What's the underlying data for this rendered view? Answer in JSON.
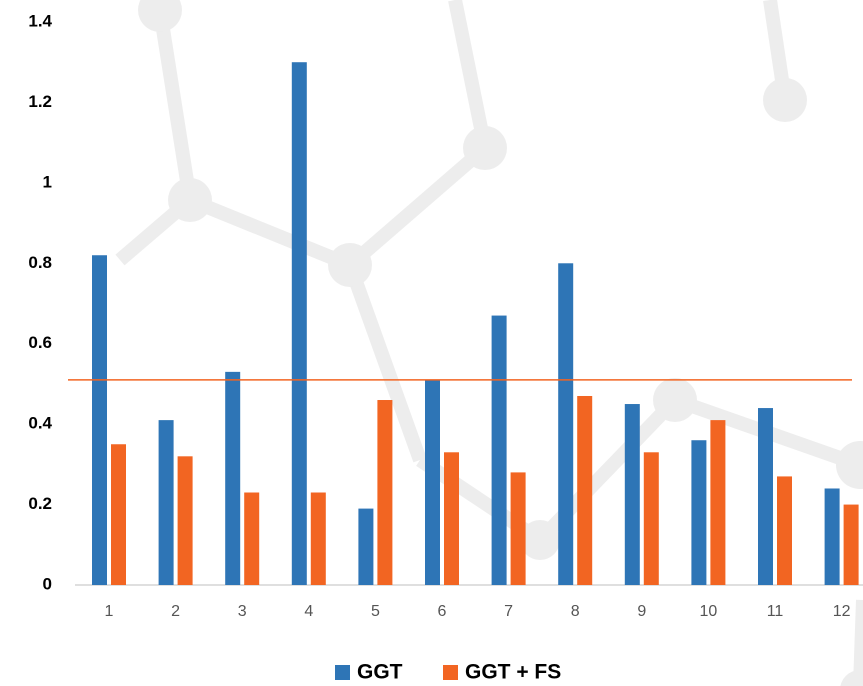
{
  "chart_data": {
    "type": "bar",
    "categories": [
      "1",
      "2",
      "3",
      "4",
      "5",
      "6",
      "7",
      "8",
      "9",
      "10",
      "11",
      "12"
    ],
    "series": [
      {
        "name": "GGT",
        "color": "#2e75b6",
        "values": [
          0.82,
          0.41,
          0.53,
          1.3,
          0.19,
          0.51,
          0.67,
          0.8,
          0.45,
          0.36,
          0.44,
          0.24
        ]
      },
      {
        "name": "GGT + FS",
        "color": "#f26522",
        "values": [
          0.35,
          0.32,
          0.23,
          0.23,
          0.46,
          0.33,
          0.28,
          0.47,
          0.33,
          0.41,
          0.27,
          0.2
        ]
      }
    ],
    "reference_line": 0.51,
    "reference_color": "#f26522",
    "ylim": [
      0,
      1.4
    ],
    "yticks": [
      0,
      0.2,
      0.4,
      0.6,
      0.8,
      1,
      1.2,
      1.4
    ],
    "grid": false,
    "legend": "bottom"
  }
}
